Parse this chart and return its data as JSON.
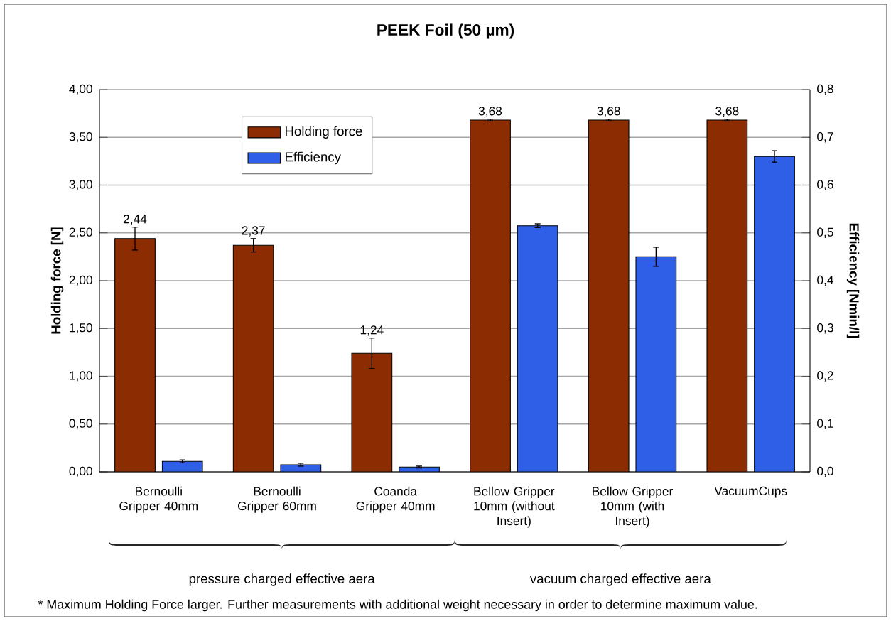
{
  "chart_data": {
    "type": "bar",
    "title": "PEEK Foil (50 µm)",
    "ylabel": "Holding force [N]",
    "y2label": "Efficiency [Nmin/l]",
    "categories": [
      "Bernoulli Gripper 40mm",
      "Bernoulli Gripper 60mm",
      "Coanda Gripper 40mm",
      "Bellow Gripper 10mm (without Insert)",
      "Bellow Gripper 10mm (with Insert)",
      "VacuumCups"
    ],
    "series": [
      {
        "name": "Holding force",
        "color": "#8b2c02",
        "values": [
          2.44,
          2.37,
          1.24,
          3.68,
          3.68,
          3.68
        ],
        "errors": [
          0.12,
          0.07,
          0.16,
          0.01,
          0.01,
          0.01
        ],
        "value_labels": [
          "2,44",
          "2,37",
          "1,24",
          "3,68",
          "3,68",
          "3,68"
        ]
      },
      {
        "name": "Efficiency",
        "color": "#2f5fe6",
        "axis": "y2",
        "values": [
          0.022,
          0.015,
          0.01,
          0.515,
          0.45,
          0.66
        ],
        "errors": [
          0.003,
          0.003,
          0.002,
          0.004,
          0.02,
          0.012
        ]
      }
    ],
    "ylim": [
      0,
      4
    ],
    "yticks": [
      {
        "value": 0,
        "label": "0,00"
      },
      {
        "value": 0.5,
        "label": "0,50"
      },
      {
        "value": 1,
        "label": "1,00"
      },
      {
        "value": 1.5,
        "label": "1,50"
      },
      {
        "value": 2,
        "label": "2,00"
      },
      {
        "value": 2.5,
        "label": "2,50"
      },
      {
        "value": 3,
        "label": "3,00"
      },
      {
        "value": 3.5,
        "label": "3,50"
      },
      {
        "value": 4,
        "label": "4,00"
      }
    ],
    "y2lim": [
      0,
      0.8
    ],
    "y2ticks": [
      {
        "value": 0,
        "label": "0,0"
      },
      {
        "value": 0.1,
        "label": "0,1"
      },
      {
        "value": 0.2,
        "label": "0,2"
      },
      {
        "value": 0.3,
        "label": "0,3"
      },
      {
        "value": 0.4,
        "label": "0,4"
      },
      {
        "value": 0.5,
        "label": "0,5"
      },
      {
        "value": 0.6,
        "label": "0,6"
      },
      {
        "value": 0.7,
        "label": "0,7"
      },
      {
        "value": 0.8,
        "label": "0,8"
      }
    ],
    "grid": "y",
    "legend": "top left",
    "annotations": [
      "pressure charged effective aera",
      "vacuum charged effective aera",
      "* Maximum Holding Force larger. Further measurements with additional weight necessary in order to determine maximum value."
    ]
  }
}
